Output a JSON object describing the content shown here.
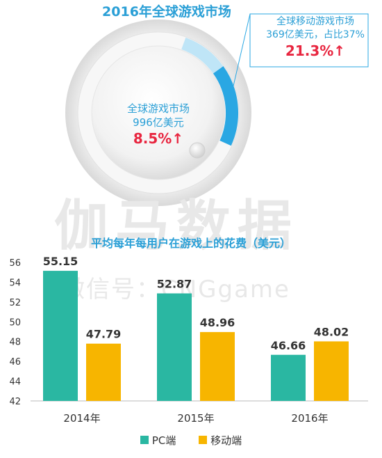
{
  "title_top": "2016年全球游戏市场",
  "gauge": {
    "center_label": "全球游戏市场",
    "center_value": "996亿美元",
    "center_growth": "8.5%↑",
    "mobile_label": "全球移动游戏市场",
    "mobile_value": "369亿美元，占比37%",
    "mobile_growth": "21.3%↑",
    "mobile_share": 0.37
  },
  "watermark": {
    "line1": "伽马数据",
    "line2": "微信号：CNGgame"
  },
  "colors": {
    "pc": "#2ab7a2",
    "mobile": "#f7b500",
    "title": "#2a9fd6",
    "growth": "#e8253f",
    "gauge_arc": "#2aa7e3"
  },
  "chart_data": {
    "type": "bar",
    "title": "平均每年每用户在游戏上的花费（美元）",
    "categories": [
      "2014年",
      "2015年",
      "2016年"
    ],
    "series": [
      {
        "name": "PC端",
        "values": [
          55.15,
          52.87,
          46.66
        ]
      },
      {
        "name": "移动端",
        "values": [
          47.79,
          48.96,
          48.02
        ]
      }
    ],
    "data_labels": [
      [
        "55.15",
        "52.87",
        "46.66"
      ],
      [
        "47.79",
        "48.96",
        "48.02"
      ]
    ],
    "ylim": [
      42,
      56
    ],
    "yticks": [
      "42",
      "44",
      "46",
      "48",
      "50",
      "52",
      "54",
      "56"
    ],
    "grid": false,
    "legend": "bottom"
  }
}
